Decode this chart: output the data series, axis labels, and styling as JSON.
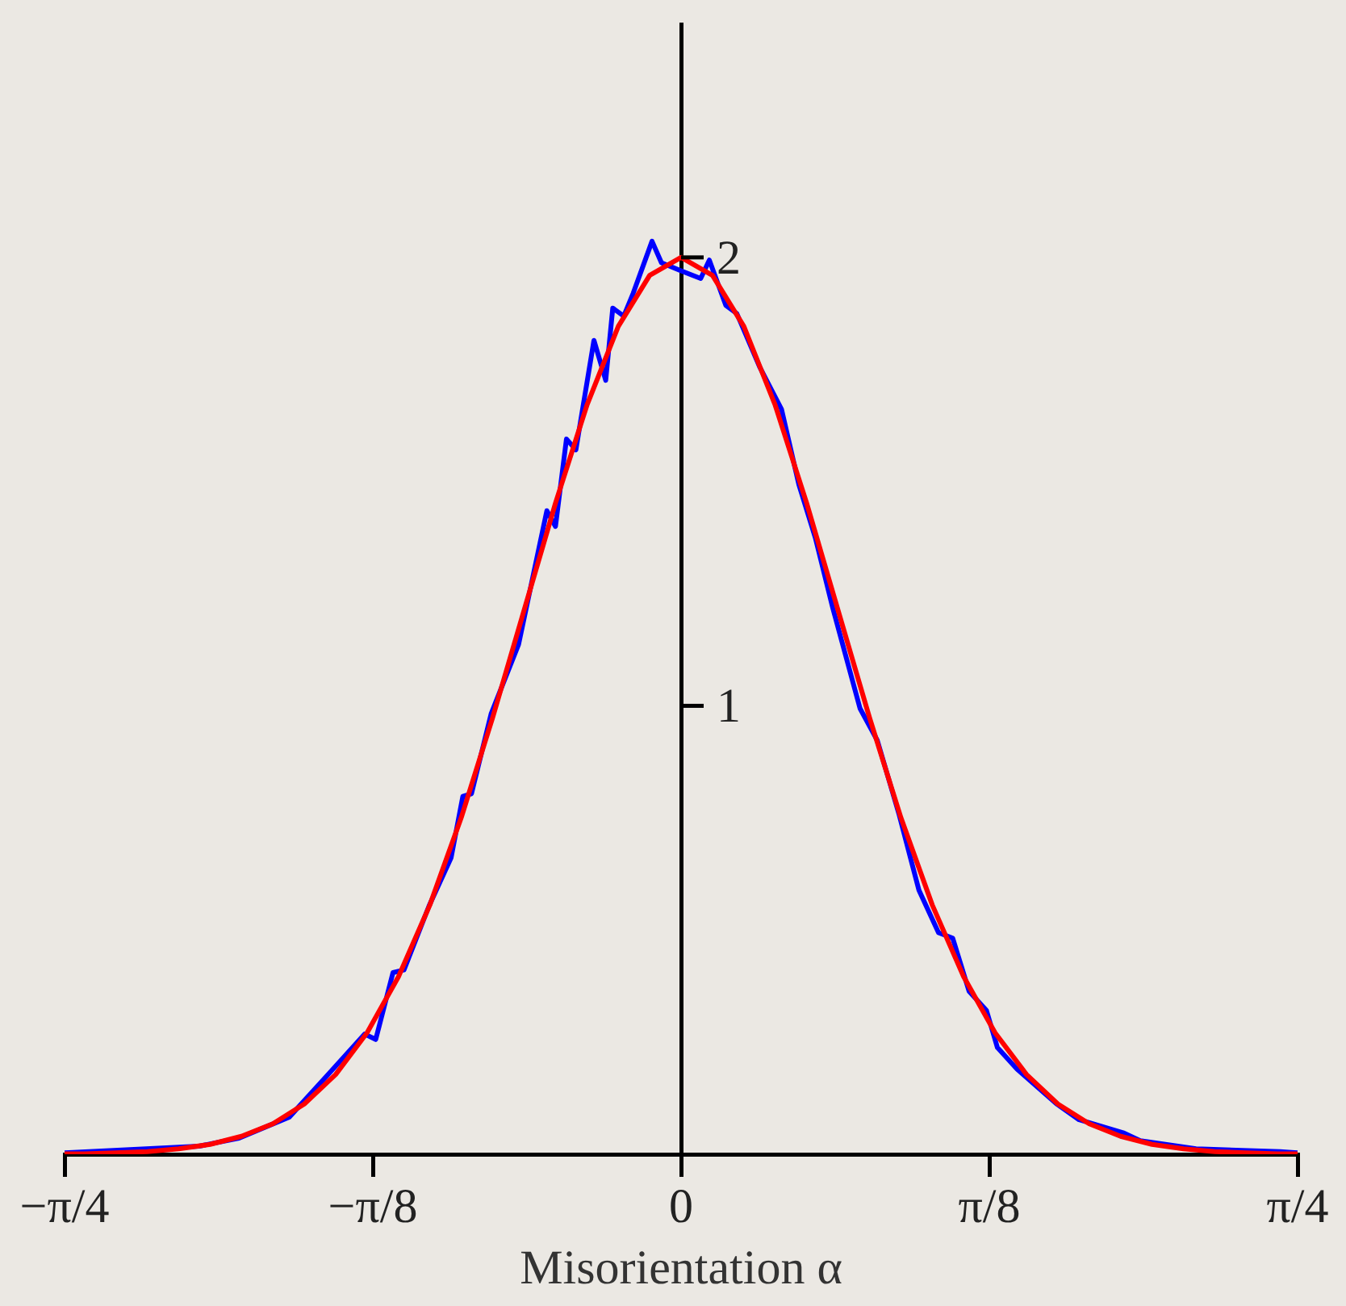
{
  "chart_data": {
    "type": "line",
    "xlabel": "Misorientation α",
    "xlim": [
      -0.7854,
      0.7854
    ],
    "ylim": [
      0,
      2.52
    ],
    "xticks": [
      {
        "value": -0.7854,
        "label": "−π/4"
      },
      {
        "value": -0.3927,
        "label": "−π/8"
      },
      0,
      {
        "value": 0.3927,
        "label": "π/8"
      },
      {
        "value": 0.7854,
        "label": "π/4"
      }
    ],
    "yticks": [
      1,
      2
    ],
    "grid": false,
    "legend": false,
    "marker": "none",
    "line_style": "solid",
    "series": [
      {
        "color": "#0000ff",
        "x": [
          -0.785,
          -0.614,
          -0.563,
          -0.499,
          -0.449,
          -0.403,
          -0.389,
          -0.367,
          -0.353,
          -0.321,
          -0.293,
          -0.278,
          -0.267,
          -0.242,
          -0.207,
          -0.171,
          -0.16,
          -0.146,
          -0.134,
          -0.111,
          -0.096,
          -0.087,
          -0.073,
          -0.061,
          -0.037,
          -0.025,
          0.0,
          0.025,
          0.036,
          0.057,
          0.071,
          0.1,
          0.128,
          0.15,
          0.171,
          0.193,
          0.228,
          0.25,
          0.278,
          0.303,
          0.328,
          0.346,
          0.367,
          0.389,
          0.403,
          0.428,
          0.478,
          0.507,
          0.563,
          0.585,
          0.656,
          0.763,
          0.785
        ],
        "values": [
          0.003,
          0.018,
          0.036,
          0.083,
          0.179,
          0.268,
          0.256,
          0.405,
          0.411,
          0.554,
          0.661,
          0.798,
          0.804,
          0.982,
          1.137,
          1.435,
          1.4,
          1.595,
          1.571,
          1.815,
          1.726,
          1.887,
          1.869,
          1.92,
          2.036,
          1.988,
          1.97,
          1.953,
          1.994,
          1.893,
          1.875,
          1.756,
          1.661,
          1.494,
          1.375,
          1.22,
          0.994,
          0.923,
          0.756,
          0.589,
          0.494,
          0.482,
          0.363,
          0.321,
          0.238,
          0.19,
          0.113,
          0.077,
          0.048,
          0.03,
          0.012,
          0.006,
          0.003
        ]
      },
      {
        "color": "#ff0000",
        "x": [
          -0.785,
          -0.76,
          -0.72,
          -0.68,
          -0.64,
          -0.6,
          -0.56,
          -0.52,
          -0.48,
          -0.44,
          -0.4,
          -0.36,
          -0.32,
          -0.28,
          -0.24,
          -0.2,
          -0.16,
          -0.12,
          -0.08,
          -0.04,
          0,
          0.04,
          0.08,
          0.12,
          0.16,
          0.2,
          0.24,
          0.28,
          0.32,
          0.36,
          0.4,
          0.44,
          0.48,
          0.52,
          0.56,
          0.6,
          0.64,
          0.68,
          0.72,
          0.76,
          0.785
        ],
        "values": [
          0.001,
          0.001,
          0.003,
          0.006,
          0.012,
          0.022,
          0.04,
          0.068,
          0.112,
          0.178,
          0.271,
          0.396,
          0.556,
          0.751,
          0.974,
          1.213,
          1.452,
          1.67,
          1.846,
          1.96,
          2.0,
          1.96,
          1.846,
          1.67,
          1.452,
          1.213,
          0.974,
          0.751,
          0.556,
          0.396,
          0.271,
          0.178,
          0.112,
          0.068,
          0.04,
          0.022,
          0.012,
          0.006,
          0.003,
          0.001,
          0.001
        ]
      }
    ]
  }
}
